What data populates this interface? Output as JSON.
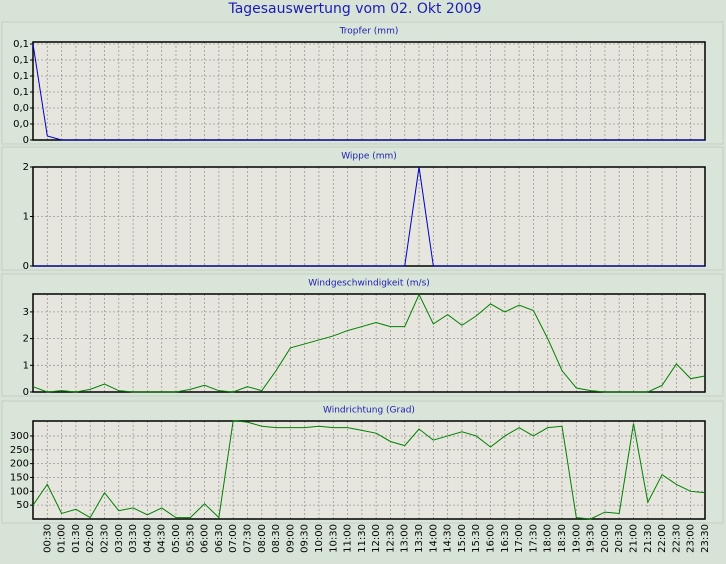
{
  "title": "Tagesauswertung vom 02. Okt 2009",
  "chart_data": [
    {
      "type": "line",
      "title": "Tropfer (mm)",
      "color": "#0000c8",
      "grid": true,
      "ylim": [
        0,
        0.1225
      ],
      "yticks": [
        0,
        {
          "value": 0.02,
          "label": "0,0"
        },
        {
          "value": 0.04,
          "label": "0,0"
        },
        {
          "value": 0.06,
          "label": "0,1"
        },
        {
          "value": 0.08,
          "label": "0,1"
        },
        {
          "value": 0.1,
          "label": "0,1"
        },
        {
          "value": 0.12,
          "label": "0,1"
        }
      ],
      "values": [
        0.12,
        0.005,
        0,
        0,
        0,
        0,
        0,
        0,
        0,
        0,
        0,
        0,
        0,
        0,
        0,
        0,
        0,
        0,
        0,
        0,
        0,
        0,
        0,
        0,
        0,
        0,
        0,
        0,
        0,
        0,
        0,
        0,
        0,
        0,
        0,
        0,
        0,
        0,
        0,
        0,
        0,
        0,
        0,
        0,
        0,
        0,
        0,
        0
      ]
    },
    {
      "type": "line",
      "title": "Wippe (mm)",
      "color": "#0000c8",
      "grid": true,
      "ylim": [
        0,
        2
      ],
      "yticks": [
        0,
        1,
        2
      ],
      "values": [
        0,
        0,
        0,
        0,
        0,
        0,
        0,
        0,
        0,
        0,
        0,
        0,
        0,
        0,
        0,
        0,
        0,
        0,
        0,
        0,
        0,
        0,
        0,
        0,
        0,
        0,
        0,
        2,
        0,
        0,
        0,
        0,
        0,
        0,
        0,
        0,
        0,
        0,
        0,
        0,
        0,
        0,
        0,
        0,
        0,
        0,
        0,
        0
      ]
    },
    {
      "type": "line",
      "title": "Windgeschwindigkeit (m/s)",
      "color": "#008000",
      "grid": true,
      "ylim": [
        0,
        3.67
      ],
      "yticks": [
        0,
        1,
        2,
        3
      ],
      "values": [
        0.2,
        0,
        0.05,
        0,
        0.1,
        0.3,
        0.05,
        0,
        0,
        0,
        0,
        0.1,
        0.25,
        0.05,
        0,
        0.2,
        0.05,
        0.8,
        1.65,
        1.8,
        1.95,
        2.1,
        2.3,
        2.45,
        2.6,
        2.45,
        2.45,
        3.65,
        2.55,
        2.9,
        2.5,
        2.85,
        3.3,
        3.0,
        3.25,
        3.05,
        2.0,
        0.8,
        0.15,
        0.05,
        0,
        0,
        0,
        0,
        0.25,
        1.05,
        0.5,
        0.6
      ]
    },
    {
      "type": "line",
      "title": "Windrichtung (Grad)",
      "color": "#008000",
      "grid": true,
      "ylim": [
        0,
        354
      ],
      "yticks": [
        50,
        100,
        150,
        200,
        250,
        300
      ],
      "categories": [
        null,
        "00:30",
        "01:00",
        "01:30",
        "02:00",
        "02:30",
        "03:00",
        "03:30",
        "04:00",
        "04:30",
        "05:00",
        "05:30",
        "06:00",
        "06:30",
        "07:00",
        "07:30",
        "08:00",
        "08:30",
        "09:00",
        "09:30",
        "10:00",
        "10:30",
        "11:00",
        "11:30",
        "12:00",
        "12:30",
        "13:00",
        "13:30",
        "14:00",
        "14:30",
        "15:00",
        "15:30",
        "16:00",
        "16:30",
        "17:00",
        "17:30",
        "18:00",
        "18:30",
        "19:00",
        "19:30",
        "20:00",
        "20:30",
        "21:00",
        "21:30",
        "22:00",
        "22:30",
        "23:00",
        "23:30"
      ],
      "values": [
        50,
        125,
        20,
        35,
        5,
        95,
        30,
        40,
        15,
        40,
        5,
        5,
        55,
        5,
        355,
        350,
        335,
        330,
        330,
        330,
        335,
        330,
        330,
        320,
        310,
        280,
        265,
        325,
        285,
        300,
        315,
        300,
        260,
        300,
        330,
        300,
        330,
        335,
        5,
        0,
        25,
        20,
        345,
        60,
        160,
        125,
        100,
        95
      ]
    }
  ]
}
